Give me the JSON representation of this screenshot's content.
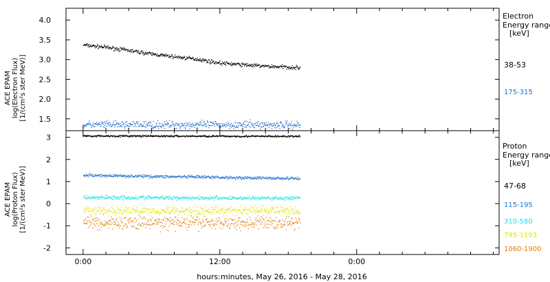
{
  "chart_data": [
    {
      "type": "scatter",
      "panel": "electron",
      "ylabel_lines": [
        "ACE EPAM",
        "log(Electron Flux)",
        "[1/(cm²s ster MeV)]"
      ],
      "ylim": [
        1.2,
        4.3
      ],
      "yticks": [
        1.5,
        2.0,
        2.5,
        3.0,
        3.5,
        4.0
      ],
      "ytick_labels": [
        "1.5",
        "2.0",
        "2.5",
        "3.0",
        "3.5",
        "4.0"
      ],
      "legend_title": [
        "Electron",
        "Energy range"
      ],
      "legend_unit": "[keV]",
      "series": [
        {
          "name": "38-53",
          "color": "#000000",
          "x": [
            0,
            2,
            4,
            6,
            8,
            10,
            12,
            14,
            16,
            18,
            19
          ],
          "y": [
            3.38,
            3.32,
            3.24,
            3.15,
            3.08,
            3.02,
            2.92,
            2.88,
            2.84,
            2.82,
            2.8
          ],
          "noise": 0.035
        },
        {
          "name": "175-315",
          "color": "#1f6fd0",
          "x": [
            0,
            19
          ],
          "y": [
            1.36,
            1.36
          ],
          "noise": 0.07
        }
      ]
    },
    {
      "type": "scatter",
      "panel": "proton",
      "ylabel_lines": [
        "ACE EPAM",
        "log(Proton Flux)",
        "[1/(cm²s ster MeV)]"
      ],
      "ylim": [
        -2.3,
        3.3
      ],
      "yticks": [
        -2,
        -1,
        0,
        1,
        2,
        3
      ],
      "ytick_labels": [
        "-2",
        "-1",
        "0",
        "1",
        "2",
        "3"
      ],
      "legend_title": [
        "Proton",
        "Energy range"
      ],
      "legend_unit": "[keV]",
      "series": [
        {
          "name": "47-68",
          "color": "#000000",
          "x": [
            0,
            19
          ],
          "y": [
            3.08,
            3.06
          ],
          "noise": 0.03
        },
        {
          "name": "115-195",
          "color": "#1f6fd0",
          "x": [
            0,
            19
          ],
          "y": [
            1.3,
            1.15
          ],
          "noise": 0.05
        },
        {
          "name": "310-580",
          "color": "#22e0e6",
          "x": [
            0,
            19
          ],
          "y": [
            0.3,
            0.26
          ],
          "noise": 0.07
        },
        {
          "name": "795-1193",
          "color": "#e3e300",
          "x": [
            0,
            19
          ],
          "y": [
            -0.3,
            -0.3
          ],
          "noise": 0.15
        },
        {
          "name": "1060-1900",
          "color": "#e07b00",
          "x": [
            0,
            19
          ],
          "y": [
            -0.85,
            -0.85
          ],
          "noise": 0.22
        }
      ]
    }
  ],
  "x_axis": {
    "xlim": [
      -1.5,
      36.5
    ],
    "ticks": [
      0,
      12,
      24
    ],
    "tick_labels": [
      "0:00",
      "12:00",
      "0:00"
    ],
    "xlabel": "hours:minutes, May 26, 2016 - May 28, 2016"
  }
}
